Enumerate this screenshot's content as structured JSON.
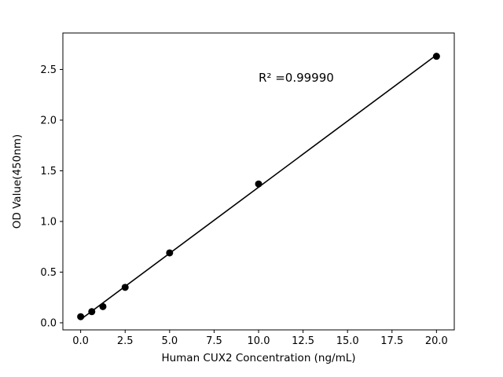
{
  "chart_data": {
    "type": "scatter",
    "title": "",
    "xlabel": "Human CUX2 Concentration (ng/mL)",
    "ylabel": "OD Value(450nm)",
    "x": [
      0,
      0.625,
      1.25,
      2.5,
      5,
      10,
      20
    ],
    "y": [
      0.06,
      0.11,
      0.16,
      0.35,
      0.69,
      1.37,
      2.63
    ],
    "fit": {
      "type": "linear",
      "slope": 0.1305,
      "intercept": 0.033
    },
    "annotation": {
      "text": "R² =0.99990",
      "x": 10.0,
      "y": 2.38
    },
    "xticks": [
      0,
      2.5,
      5,
      7.5,
      10,
      12.5,
      15,
      17.5,
      20
    ],
    "xtick_labels": [
      "0.0",
      "2.5",
      "5.0",
      "7.5",
      "10.0",
      "12.5",
      "15.0",
      "17.5",
      "20.0"
    ],
    "yticks": [
      0,
      0.5,
      1,
      1.5,
      2,
      2.5
    ],
    "ytick_labels": [
      "0.0",
      "0.5",
      "1.0",
      "1.5",
      "2.0",
      "2.5"
    ],
    "xlim": [
      -1,
      21
    ],
    "ylim": [
      -0.07,
      2.86
    ],
    "grid": false,
    "legend_position": "none",
    "marker_color": "#000000",
    "line_color": "#000000",
    "axis_color": "#000000",
    "text_color": "#000000",
    "background_color": "#ffffff"
  }
}
